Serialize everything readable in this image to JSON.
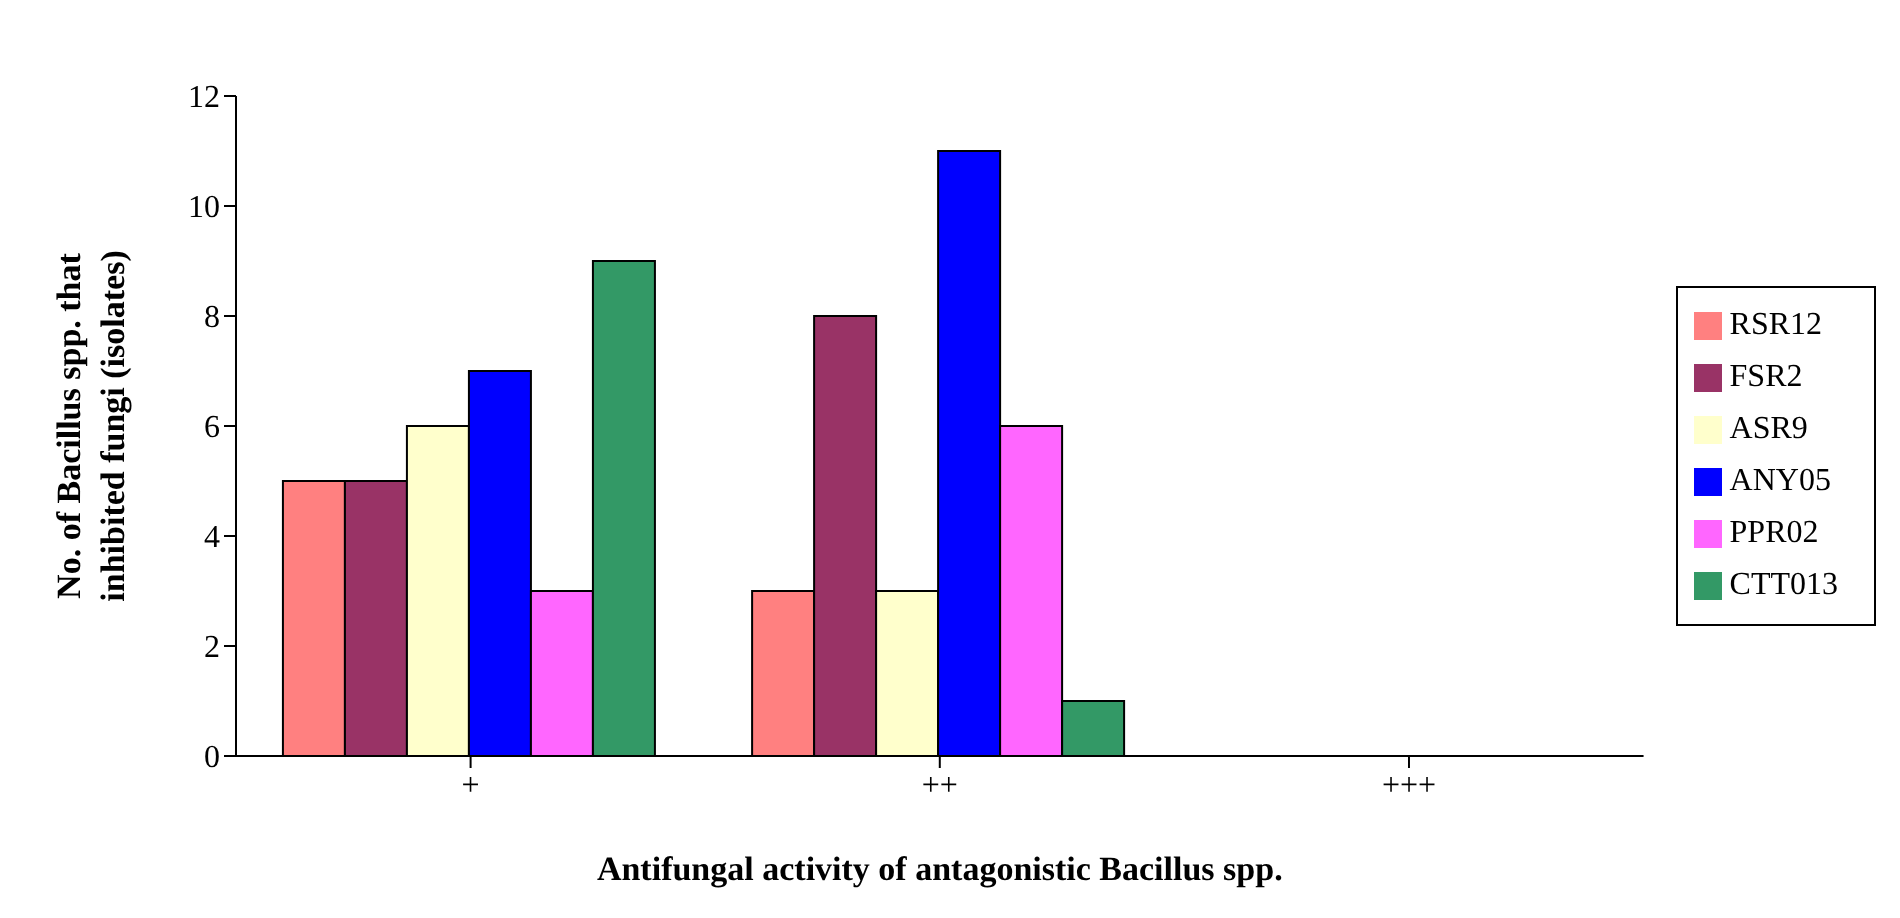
{
  "chart_data": {
    "type": "bar",
    "xlabel": "Antifungal activity of antagonistic Bacillus spp.",
    "ylabel": "No. of Bacillus spp. that inhibited fungi (isolates)",
    "categories": [
      "+",
      "++",
      "+++"
    ],
    "series": [
      {
        "name": "RSR12",
        "color": "#ff8080",
        "values": [
          5,
          3,
          0
        ]
      },
      {
        "name": "FSR2",
        "color": "#993366",
        "values": [
          5,
          8,
          0
        ]
      },
      {
        "name": "ASR9",
        "color": "#ffffcc",
        "values": [
          6,
          3,
          0
        ]
      },
      {
        "name": "ANY05",
        "color": "#0000ff",
        "values": [
          7,
          11,
          0
        ]
      },
      {
        "name": "PPR02",
        "color": "#ff66ff",
        "values": [
          3,
          6,
          0
        ]
      },
      {
        "name": "CTT013",
        "color": "#339966",
        "values": [
          9,
          1,
          0
        ]
      }
    ],
    "ylim": [
      0,
      12
    ],
    "yticks": [
      0,
      2,
      4,
      6,
      8,
      10,
      12
    ],
    "grid": false,
    "legend": "right"
  }
}
